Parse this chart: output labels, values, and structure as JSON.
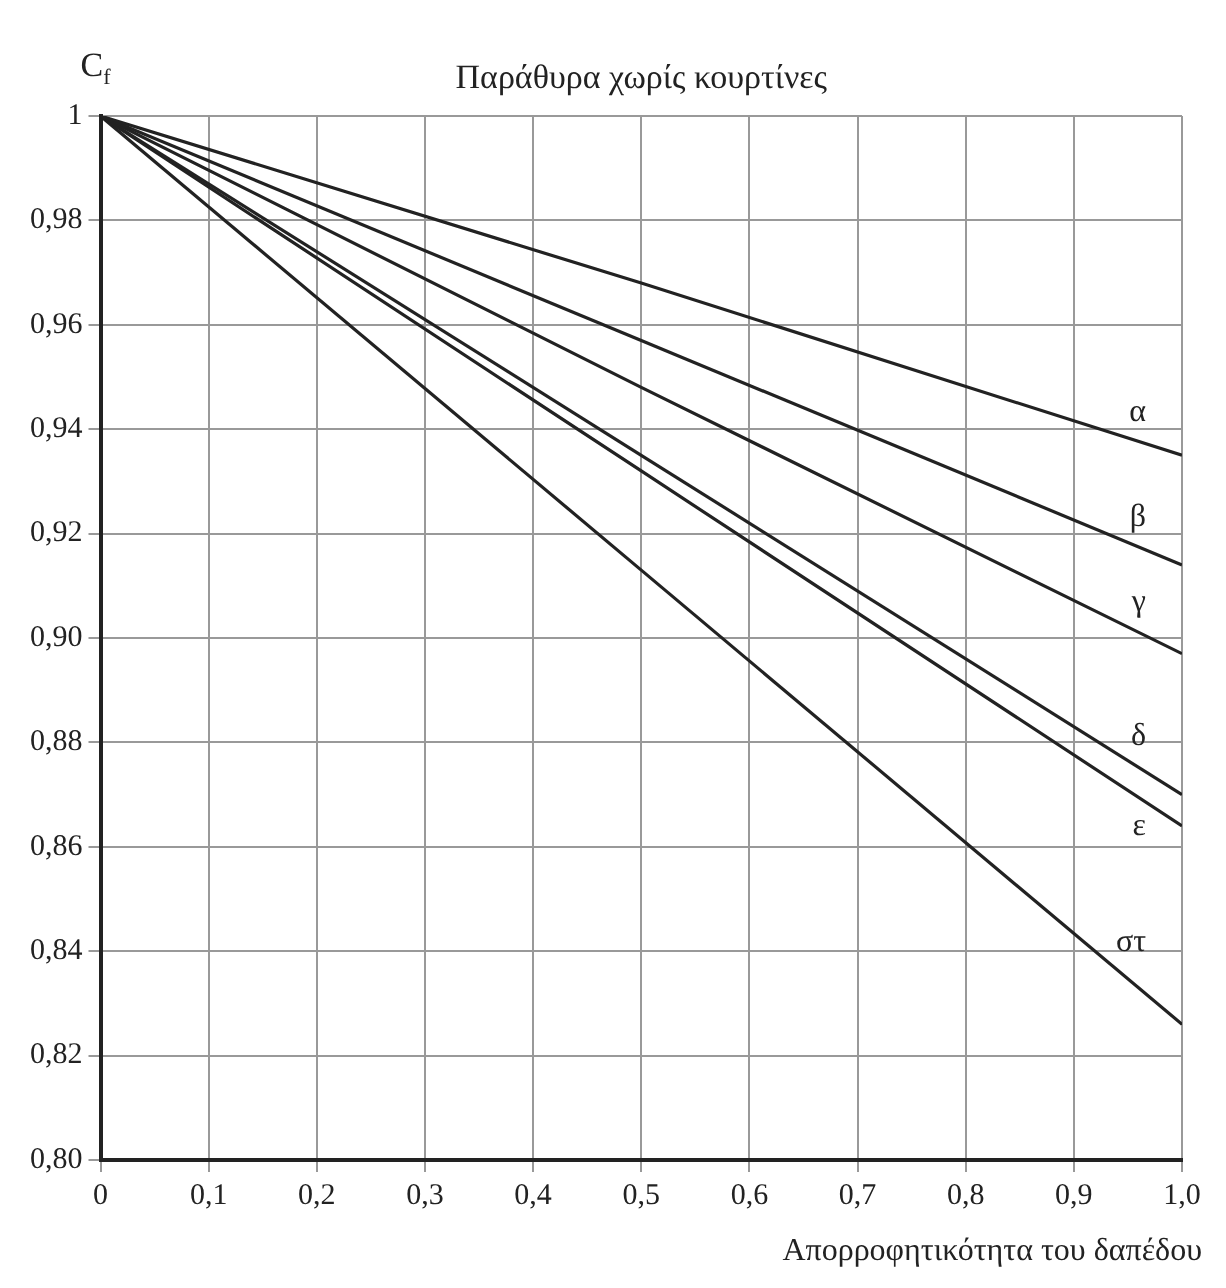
{
  "chart_data": {
    "type": "line",
    "title": "Παράθυρα χωρίς κουρτίνες",
    "xlabel": "Απορροφητικότητα του δαπέδου",
    "ylabel": "C$_{f}$",
    "x": [
      0,
      0.5,
      1
    ],
    "series": [
      {
        "name": "α",
        "color": "#222222",
        "values": [
          1,
          0.968,
          0.935
        ]
      },
      {
        "name": "β",
        "color": "#222222",
        "values": [
          1,
          0.957,
          0.914
        ]
      },
      {
        "name": "γ",
        "color": "#222222",
        "values": [
          1,
          0.948,
          0.897
        ]
      },
      {
        "name": "δ",
        "color": "#222222",
        "values": [
          1,
          0.935,
          0.87
        ]
      },
      {
        "name": "ε",
        "color": "#222222",
        "values": [
          1,
          0.932,
          0.864
        ]
      },
      {
        "name": "στ",
        "color": "#222222",
        "values": [
          1,
          0.913,
          0.826
        ]
      }
    ],
    "xlim": [
      0,
      1
    ],
    "xticks": [
      {
        "value": 0,
        "label": "0"
      },
      {
        "value": 0.1,
        "label": "0,1"
      },
      {
        "value": 0.2,
        "label": "0,2"
      },
      {
        "value": 0.3,
        "label": "0,3"
      },
      {
        "value": 0.4,
        "label": "0,4"
      },
      {
        "value": 0.5,
        "label": "0,5"
      },
      {
        "value": 0.6,
        "label": "0,6"
      },
      {
        "value": 0.7,
        "label": "0,7"
      },
      {
        "value": 0.8,
        "label": "0,8"
      },
      {
        "value": 0.9,
        "label": "0,9"
      },
      {
        "value": 1,
        "label": "1,0"
      }
    ],
    "ylim": [
      0.8,
      1
    ],
    "yticks": [
      {
        "value": 0.8,
        "label": "0,80"
      },
      {
        "value": 0.82,
        "label": "0,82"
      },
      {
        "value": 0.84,
        "label": "0,84"
      },
      {
        "value": 0.86,
        "label": "0,86"
      },
      {
        "value": 0.88,
        "label": "0,88"
      },
      {
        "value": 0.9,
        "label": "0,90"
      },
      {
        "value": 0.92,
        "label": "0,92"
      },
      {
        "value": 0.94,
        "label": "0,94"
      },
      {
        "value": 0.96,
        "label": "0,96"
      },
      {
        "value": 0.98,
        "label": "0,98"
      },
      1
    ],
    "grid": true,
    "legend": false,
    "marker": "none",
    "line_style": "solid"
  }
}
